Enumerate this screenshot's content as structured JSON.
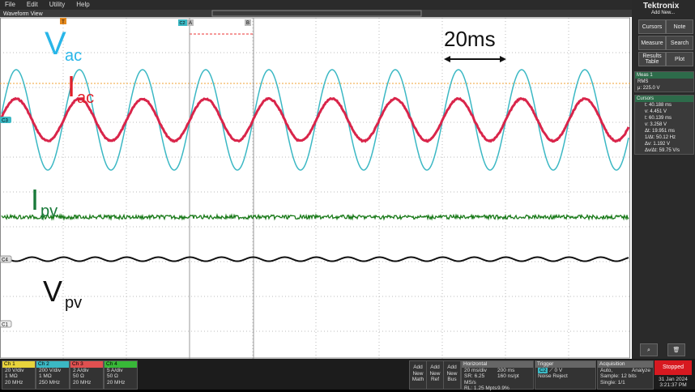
{
  "menu": [
    "File",
    "Edit",
    "Utility",
    "Help"
  ],
  "view_title": "Waveform View",
  "markers": {
    "trigger": "T",
    "cursor_a": "A",
    "cursor_b": "B",
    "trigger_source": "C2",
    "ch3": "C3",
    "ch4": "C4",
    "ch1": "C1"
  },
  "annotations": {
    "vac": {
      "main": "V",
      "sub": "ac"
    },
    "iac": {
      "main": "I",
      "sub": "ac"
    },
    "ipv": {
      "main": "I",
      "sub": "pv"
    },
    "vpv": {
      "main": "V",
      "sub": "pv"
    },
    "period": "20ms"
  },
  "side_panel": {
    "logo": "Tektronix",
    "add_new": "Add New...",
    "buttons": [
      "Cursors",
      "Note",
      "Measure",
      "Search",
      "Results Table",
      "Plot"
    ],
    "meas": {
      "title": "Meas 1",
      "type": "RMS",
      "value": "μ: 225.0 V"
    },
    "cursors": {
      "title": "Cursors",
      "lines": [
        "t: 40.188 ms",
        "v: 4.451 V",
        "t: 60.139 ms",
        "v: 3.258 V",
        "Δt: 19.951 ms",
        "1/Δt: 50.12 Hz",
        "Δv: 1.192 V",
        "Δv/Δt: 59.75 V/s"
      ]
    }
  },
  "channels": [
    {
      "name": "Ch 1",
      "lines": [
        "20 V/div",
        "1 MΩ",
        "20 MHz"
      ]
    },
    {
      "name": "Ch 2",
      "lines": [
        "200 V/div",
        "1 MΩ",
        "250 MHz"
      ]
    },
    {
      "name": "Ch 3",
      "lines": [
        "2 A/div",
        "50 Ω",
        "20 MHz"
      ]
    },
    {
      "name": "Ch 4",
      "lines": [
        "5 A/div",
        "50 Ω",
        "20 MHz"
      ]
    }
  ],
  "add_new": [
    [
      "Add",
      "New",
      "Math"
    ],
    [
      "Add",
      "New",
      "Ref"
    ],
    [
      "Add",
      "New",
      "Bus"
    ]
  ],
  "horizontal": {
    "title": "Horizontal",
    "lines": [
      "20 ms/div",
      "200 ms",
      "SR: 6.25 MS/s",
      "160 ns/pt",
      "RL: 1.25 Mpts",
      "9.9%"
    ]
  },
  "trigger": {
    "title": "Trigger",
    "lines": [
      "C2",
      "0 V",
      "Noise Reject"
    ]
  },
  "acquisition": {
    "title": "Acquisition",
    "lines": [
      "Auto,",
      "Analyze",
      "Sample: 12 bits",
      "Single: 1/1"
    ]
  },
  "status": {
    "state": "Stopped",
    "date": "31 Jan 2024",
    "time": "3:21:37 PM"
  }
}
